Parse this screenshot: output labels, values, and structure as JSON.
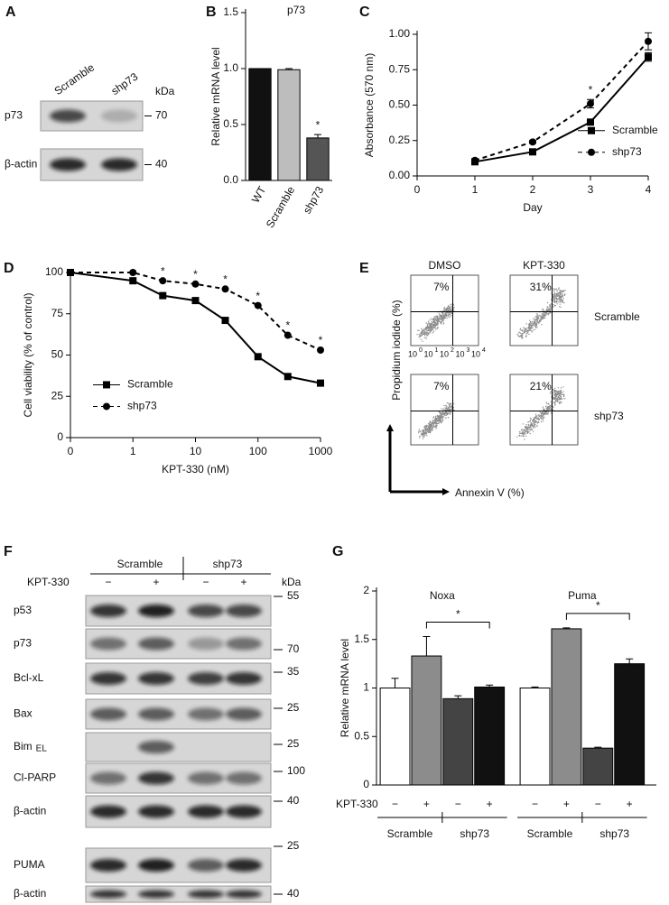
{
  "panels": [
    "A",
    "B",
    "C",
    "D",
    "E",
    "F",
    "G"
  ],
  "blot_a": {
    "lanes": [
      "Scramble",
      "shp73"
    ],
    "unit": "kDa",
    "rows": [
      {
        "label": "p73",
        "marker": "70"
      },
      {
        "label": "β-actin",
        "marker": "40"
      }
    ]
  },
  "chart_data": [
    {
      "type": "bar",
      "title": "p73",
      "ylabel": "Relative mRNA level",
      "categories": [
        "WT",
        "Scramble",
        "shp73"
      ],
      "values": [
        1,
        0.99,
        0.38
      ],
      "errors": [
        null,
        0.01,
        0.03
      ],
      "colors": [
        "#111111",
        "#bdbdbd",
        "#555555"
      ],
      "ylim": [
        0,
        1.5
      ],
      "yticks": [
        {
          "value": 0,
          "label": "0.0"
        },
        0.5,
        {
          "value": 1,
          "label": "1.0"
        },
        1.5
      ],
      "annotations": [
        {
          "text": "*",
          "x": "shp73"
        }
      ]
    },
    {
      "type": "line",
      "xlabel": "Day",
      "ylabel": "Absorbance (570 nm)",
      "x": [
        1,
        2,
        3,
        4
      ],
      "series": [
        {
          "name": "Scramble",
          "color": "#000000",
          "marker": "square",
          "linestyle": "solid",
          "values": [
            0.1,
            0.17,
            0.38,
            0.84
          ],
          "errors": [
            0.01,
            0.01,
            0.02,
            0.03
          ]
        },
        {
          "name": "shp73",
          "color": "#000000",
          "marker": "circle",
          "linestyle": "dashed",
          "values": [
            0.11,
            0.24,
            0.51,
            0.95
          ],
          "errors": [
            0.01,
            0.01,
            0.03,
            0.06
          ]
        }
      ],
      "xlim": [
        0,
        4
      ],
      "xticks": [
        0,
        1,
        2,
        3,
        4
      ],
      "ylim": [
        0,
        1
      ],
      "yticks": [
        {
          "value": 0,
          "label": "0.00"
        },
        0.25,
        {
          "value": 0.5,
          "label": "0.50"
        },
        0.75,
        {
          "value": 1,
          "label": "1.00"
        }
      ],
      "legend": "right",
      "annotations": [
        {
          "text": "*",
          "x": 3
        }
      ]
    },
    {
      "type": "line",
      "xscale": "log",
      "xlabel": "KPT-330 (nM)",
      "ylabel": "Cell viability (% of control)",
      "x": [
        0,
        1,
        3,
        10,
        30,
        100,
        300,
        1000
      ],
      "series": [
        {
          "name": "Scramble",
          "color": "#000000",
          "marker": "square",
          "linestyle": "solid",
          "values": [
            100,
            95,
            86,
            83,
            71,
            49,
            37,
            33
          ]
        },
        {
          "name": "shp73",
          "color": "#000000",
          "marker": "circle",
          "linestyle": "dashed",
          "values": [
            100,
            100,
            95,
            93,
            90,
            80,
            62,
            53
          ]
        }
      ],
      "xlim": [
        0,
        1000
      ],
      "xticks": [
        0,
        1,
        10,
        100,
        1000
      ],
      "ylim": [
        0,
        100
      ],
      "yticks": [
        0,
        25,
        50,
        75,
        100
      ],
      "legend": "left",
      "annotations": [
        {
          "text": "*",
          "x": 3
        },
        {
          "text": "*",
          "x": 10
        },
        {
          "text": "*",
          "x": 30
        },
        {
          "text": "*",
          "x": 100
        },
        {
          "text": "*",
          "x": 300
        },
        {
          "text": "*",
          "x": 1000
        }
      ]
    },
    {
      "type": "bar",
      "ylabel": "Relative mRNA level",
      "groups": [
        {
          "name": "Noxa",
          "values": [
            1,
            1.33,
            0.89,
            1.01
          ],
          "errors": [
            0.1,
            0.2,
            0.03,
            0.02
          ],
          "significance": "*"
        },
        {
          "name": "Puma",
          "values": [
            1,
            1.61,
            0.38,
            1.25
          ],
          "errors": [
            0.01,
            0.01,
            0.01,
            0.05
          ],
          "significance": "*"
        }
      ],
      "colors": [
        "#ffffff",
        "#8c8c8c",
        "#444444",
        "#111111"
      ],
      "ylim": [
        0,
        2
      ],
      "yticks": [
        0,
        0.5,
        1,
        1.5,
        2
      ],
      "treatment": "KPT-330",
      "signs": [
        "−",
        "+",
        "−",
        "+"
      ],
      "conditions": [
        "Scramble",
        "shp73"
      ]
    }
  ],
  "flow_e": {
    "columns": [
      "DMSO",
      "KPT-330"
    ],
    "rows": [
      "Scramble",
      "shp73"
    ],
    "percentages": [
      [
        "7%",
        "31%"
      ],
      [
        "7%",
        "21%"
      ]
    ],
    "tick_base": "10",
    "tick_exponents": [
      "0",
      "1",
      "2",
      "3",
      "4"
    ],
    "ylabel": "Propidium iodide (%)",
    "xlabel": "Annexin V (%)"
  },
  "blot_f": {
    "groups": [
      "Scramble",
      "shp73"
    ],
    "treatment": "KPT-330",
    "signs": [
      "−",
      "+",
      "−",
      "+"
    ],
    "unit": "kDa",
    "rows": [
      {
        "label": "p53",
        "marker": "55"
      },
      {
        "label": "p73",
        "marker": "70"
      },
      {
        "label": "Bcl-xL",
        "marker": "35"
      },
      {
        "label": "Bax",
        "marker": "25"
      },
      {
        "label": "Bim",
        "subscript": "EL",
        "marker": "25"
      },
      {
        "label": "Cl-PARP",
        "marker": "100"
      },
      {
        "label": "β-actin",
        "marker": "40"
      },
      {
        "label": "PUMA",
        "marker": "25"
      },
      {
        "label": "β-actin",
        "marker": "40"
      }
    ]
  }
}
